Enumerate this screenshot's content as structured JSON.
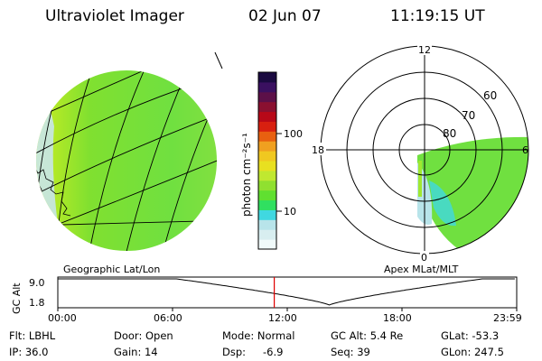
{
  "header": {
    "instrument": "Ultraviolet Imager",
    "date": "02 Jun 07",
    "time": "11:19:15 UT"
  },
  "colorbar": {
    "unit_label": "photon cm⁻²s⁻¹",
    "ticks": [
      "100",
      "10"
    ],
    "colors": [
      "#f0fafa",
      "#d8eef0",
      "#b8e4ea",
      "#40d8e0",
      "#30e060",
      "#60e030",
      "#90e030",
      "#c0e830",
      "#e8e020",
      "#f0c820",
      "#f0a020",
      "#e86010",
      "#d82010",
      "#b80818",
      "#8a1030",
      "#5c1048",
      "#3a1060",
      "#1a0a40"
    ]
  },
  "geo_panel": {
    "label": "Geographic Lat/Lon"
  },
  "polar_panel": {
    "label": "Apex MLat/MLT",
    "mlt_labels": {
      "top": "12",
      "left": "18",
      "right": "6",
      "bottom": "0"
    },
    "lat_labels": [
      "60",
      "70",
      "80"
    ]
  },
  "altitude_plot": {
    "ylabel": "GC Alt",
    "ytick_top": "9.0",
    "ytick_bottom": "1.8",
    "xticks": [
      "00:00",
      "06:00",
      "12:00",
      "18:00",
      "23:59"
    ],
    "current_time_hours": 11.32,
    "perigee_hours": 14.2
  },
  "info": {
    "flt": "Flt: LBHL",
    "ip": "IP: 36.0",
    "door": "Door: Open",
    "gain": "Gain: 14",
    "mode": "Mode: Normal",
    "dsp_label": "Dsp:",
    "dsp_value": "-6.9",
    "gc_alt": "GC Alt: 5.4 Re",
    "seq": "Seq: 39",
    "glat": "GLat: -53.3",
    "glon": "GLon: 247.5"
  }
}
